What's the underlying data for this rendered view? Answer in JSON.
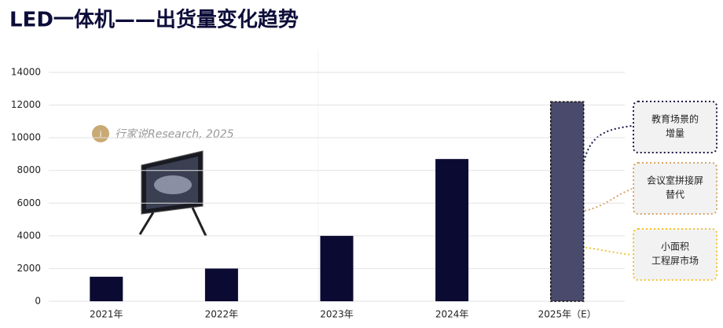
{
  "chart_data": {
    "type": "bar",
    "title": "LED一体机——出货量变化趋势",
    "categories": [
      "2021年",
      "2022年",
      "2023年",
      "2024年",
      "2025年（E）"
    ],
    "values": [
      1500,
      2000,
      4000,
      8700,
      12200
    ],
    "color": "#0a0a33",
    "estimate_color": "#4a4a6c",
    "ylim": [
      0,
      14000
    ],
    "yticks": [
      0,
      2000,
      4000,
      6000,
      8000,
      10000,
      12000,
      14000
    ],
    "grid": true,
    "watermark": "行家说Research, 2025",
    "annotations": [
      {
        "lines": [
          "教育场景的",
          "增量"
        ],
        "color": "#1a1a4a"
      },
      {
        "lines": [
          "会议室拼接屏",
          "替代"
        ],
        "color": "#d9a566"
      },
      {
        "lines": [
          "小面积",
          "工程屏市场"
        ],
        "color": "#f2c434"
      }
    ]
  }
}
